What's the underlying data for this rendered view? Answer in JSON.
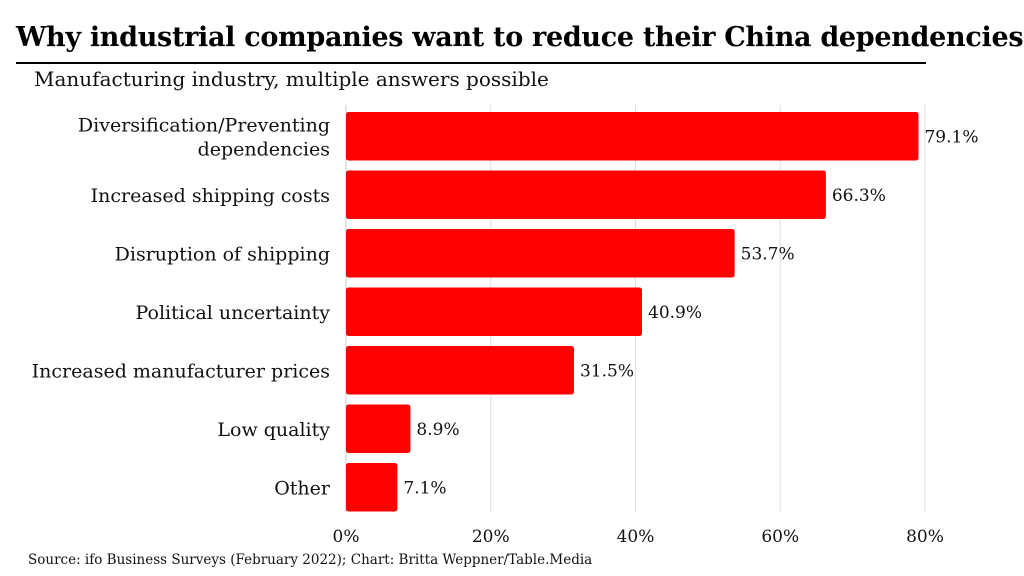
{
  "header": {
    "title": "Why industrial companies want to reduce their China dependencies",
    "subtitle": "Manufacturing industry, multiple answers possible"
  },
  "footer": {
    "source": "Source: ifo Business Surveys (February 2022); Chart: Britta Weppner/Table.Media"
  },
  "colors": {
    "bar": "#ff0000",
    "grid": "#dddddd",
    "text": "#111111"
  },
  "chart_data": {
    "type": "bar",
    "orientation": "horizontal",
    "title": "Why industrial companies want to reduce their China dependencies",
    "subtitle": "Manufacturing industry, multiple answers possible",
    "categories": [
      [
        "Diversification/Preventing",
        "dependencies"
      ],
      [
        "Increased shipping costs"
      ],
      [
        "Disruption of shipping"
      ],
      [
        "Political uncertainty"
      ],
      [
        "Increased manufacturer prices"
      ],
      [
        "Low quality"
      ],
      [
        "Other"
      ]
    ],
    "values": [
      79.1,
      66.3,
      53.7,
      40.9,
      31.5,
      8.9,
      7.1
    ],
    "value_labels": [
      "79.1%",
      "66.3%",
      "53.7%",
      "40.9%",
      "31.5%",
      "8.9%",
      "7.1%"
    ],
    "xlim": [
      0,
      80
    ],
    "x_ticks": [
      0,
      20,
      40,
      60,
      80
    ],
    "x_tick_labels": [
      "0%",
      "20%",
      "40%",
      "60%",
      "80%"
    ],
    "grid": "vertical",
    "legend": "none"
  }
}
